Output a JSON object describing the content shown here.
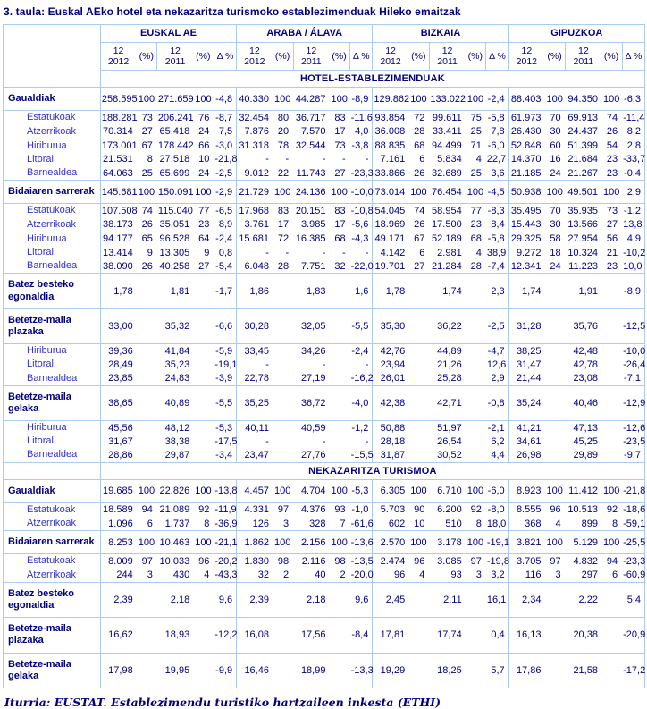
{
  "title": "3. taula: Euskal AEko hotel eta nekazaritza turismoko establezimenduak Hileko emaitzak",
  "footer": "Iturria: EUSTAT. Establezimendu turistiko hartzaileen inkesta (ETHI)",
  "colors": {
    "text_navy": "#000080",
    "sub_label_blue": "#3333CC",
    "border_light_blue": "#AACCEE"
  },
  "table": {
    "columns": {
      "groups": [
        "EUSKAL AE",
        "ARABA / ÁLAVA",
        "BIZKAIA",
        "GIPUZKOA"
      ],
      "sub": {
        "month": "12",
        "year1": "2012",
        "year2": "2011",
        "pct": "(%)",
        "delta": "Δ %"
      }
    },
    "sections": [
      {
        "title": "HOTEL-ESTABLEZIMENDUAK",
        "rows": [
          {
            "label": "Gaualdiak",
            "kind": "main",
            "top": false,
            "cells": [
              "258.595",
              "100",
              "271.659",
              "100",
              "-4,8",
              "40.330",
              "100",
              "44.287",
              "100",
              "-8,9",
              "129.862",
              "100",
              "133.022",
              "100",
              "-2,4",
              "88.403",
              "100",
              "94.350",
              "100",
              "-6,3"
            ]
          },
          {
            "label": "Estatukoak",
            "kind": "sub",
            "top": true,
            "cells": [
              "188.281",
              "73",
              "206.241",
              "76",
              "-8,7",
              "32.454",
              "80",
              "36.717",
              "83",
              "-11,6",
              "93.854",
              "72",
              "99.611",
              "75",
              "-5,8",
              "61.973",
              "70",
              "69.913",
              "74",
              "-11,4"
            ]
          },
          {
            "label": "Atzerrikoak",
            "kind": "sub",
            "top": false,
            "cells": [
              "70.314",
              "27",
              "65.418",
              "24",
              "7,5",
              "7.876",
              "20",
              "7.570",
              "17",
              "4,0",
              "36.008",
              "28",
              "33.411",
              "25",
              "7,8",
              "26.430",
              "30",
              "24.437",
              "26",
              "8,2"
            ]
          },
          {
            "label": "Hiriburua",
            "kind": "sub",
            "top": true,
            "cells": [
              "173.001",
              "67",
              "178.442",
              "66",
              "-3,0",
              "31.318",
              "78",
              "32.544",
              "73",
              "-3,8",
              "88.835",
              "68",
              "94.499",
              "71",
              "-6,0",
              "52.848",
              "60",
              "51.399",
              "54",
              "2,8"
            ]
          },
          {
            "label": "Litoral",
            "kind": "sub",
            "top": false,
            "cells": [
              "21.531",
              "8",
              "27.518",
              "10",
              "-21,8",
              "-",
              "-",
              "-",
              "-",
              "-",
              "7.161",
              "6",
              "5.834",
              "4",
              "22,7",
              "14.370",
              "16",
              "21.684",
              "23",
              "-33,7"
            ]
          },
          {
            "label": "Barnealdea",
            "kind": "sub",
            "top": false,
            "cells": [
              "64.063",
              "25",
              "65.699",
              "24",
              "-2,5",
              "9.012",
              "22",
              "11.743",
              "27",
              "-23,3",
              "33.866",
              "26",
              "32.689",
              "25",
              "3,6",
              "21.185",
              "24",
              "21.267",
              "23",
              "-0,4"
            ]
          },
          {
            "label": "Bidaiaren sarrerak",
            "kind": "main",
            "top": true,
            "cells": [
              "145.681",
              "100",
              "150.091",
              "100",
              "-2,9",
              "21.729",
              "100",
              "24.136",
              "100",
              "-10,0",
              "73.014",
              "100",
              "76.454",
              "100",
              "-4,5",
              "50.938",
              "100",
              "49.501",
              "100",
              "2,9"
            ]
          },
          {
            "label": "Estatukoak",
            "kind": "sub",
            "top": true,
            "cells": [
              "107.508",
              "74",
              "115.040",
              "77",
              "-6,5",
              "17.968",
              "83",
              "20.151",
              "83",
              "-10,8",
              "54.045",
              "74",
              "58.954",
              "77",
              "-8,3",
              "35.495",
              "70",
              "35.935",
              "73",
              "-1,2"
            ]
          },
          {
            "label": "Atzerrikoak",
            "kind": "sub",
            "top": false,
            "cells": [
              "38.173",
              "26",
              "35.051",
              "23",
              "8,9",
              "3.761",
              "17",
              "3.985",
              "17",
              "-5,6",
              "18.969",
              "26",
              "17.500",
              "23",
              "8,4",
              "15.443",
              "30",
              "13.566",
              "27",
              "13,8"
            ]
          },
          {
            "label": "Hiriburua",
            "kind": "sub",
            "top": true,
            "cells": [
              "94.177",
              "65",
              "96.528",
              "64",
              "-2,4",
              "15.681",
              "72",
              "16.385",
              "68",
              "-4,3",
              "49.171",
              "67",
              "52.189",
              "68",
              "-5,8",
              "29.325",
              "58",
              "27.954",
              "56",
              "4,9"
            ]
          },
          {
            "label": "Litoral",
            "kind": "sub",
            "top": false,
            "cells": [
              "13.414",
              "9",
              "13.305",
              "9",
              "0,8",
              "-",
              "-",
              "-",
              "-",
              "-",
              "4.142",
              "6",
              "2.981",
              "4",
              "38,9",
              "9.272",
              "18",
              "10.324",
              "21",
              "-10,2"
            ]
          },
          {
            "label": "Barnealdea",
            "kind": "sub",
            "top": false,
            "cells": [
              "38.090",
              "26",
              "40.258",
              "27",
              "-5,4",
              "6.048",
              "28",
              "7.751",
              "32",
              "-22,0",
              "19.701",
              "27",
              "21.284",
              "28",
              "-7,4",
              "12.341",
              "24",
              "11.223",
              "23",
              "10,0"
            ]
          },
          {
            "label": "Batez besteko egonaldia",
            "kind": "main",
            "top": true,
            "cells": [
              "1,78",
              "",
              "1,81",
              "",
              "-1,7",
              "1,86",
              "",
              "1,83",
              "",
              "1,6",
              "1,78",
              "",
              "1,74",
              "",
              "2,3",
              "1,74",
              "",
              "1,91",
              "",
              "-8,9"
            ]
          },
          {
            "label": "Betetze-maila plazaka",
            "kind": "main",
            "top": true,
            "cells": [
              "33,00",
              "",
              "35,32",
              "",
              "-6,6",
              "30,28",
              "",
              "32,05",
              "",
              "-5,5",
              "35,30",
              "",
              "36,22",
              "",
              "-2,5",
              "31,28",
              "",
              "35,76",
              "",
              "-12,5"
            ]
          },
          {
            "label": "Hiriburua",
            "kind": "sub",
            "top": true,
            "cells": [
              "39,36",
              "",
              "41,84",
              "",
              "-5,9",
              "33,45",
              "",
              "34,26",
              "",
              "-2,4",
              "42,76",
              "",
              "44,89",
              "",
              "-4,7",
              "38,25",
              "",
              "42,48",
              "",
              "-10,0"
            ]
          },
          {
            "label": "Litoral",
            "kind": "sub",
            "top": false,
            "cells": [
              "28,49",
              "",
              "35,23",
              "",
              "-19,1",
              "-",
              "",
              "-",
              "",
              "-",
              "23,94",
              "",
              "21,26",
              "",
              "12,6",
              "31,47",
              "",
              "42,78",
              "",
              "-26,4"
            ]
          },
          {
            "label": "Barnealdea",
            "kind": "sub",
            "top": false,
            "cells": [
              "23,85",
              "",
              "24,83",
              "",
              "-3,9",
              "22,78",
              "",
              "27,19",
              "",
              "-16,2",
              "26,01",
              "",
              "25,28",
              "",
              "2,9",
              "21,44",
              "",
              "23,08",
              "",
              "-7,1"
            ]
          },
          {
            "label": "Betetze-maila gelaka",
            "kind": "main",
            "top": true,
            "cells": [
              "38,65",
              "",
              "40,89",
              "",
              "-5,5",
              "35,25",
              "",
              "36,72",
              "",
              "-4,0",
              "42,38",
              "",
              "42,71",
              "",
              "-0,8",
              "35,24",
              "",
              "40,46",
              "",
              "-12,9"
            ]
          },
          {
            "label": "Hiriburua",
            "kind": "sub",
            "top": true,
            "cells": [
              "45,56",
              "",
              "48,12",
              "",
              "-5,3",
              "40,11",
              "",
              "40,59",
              "",
              "-1,2",
              "50,88",
              "",
              "51,97",
              "",
              "-2,1",
              "41,21",
              "",
              "47,13",
              "",
              "-12,6"
            ]
          },
          {
            "label": "Litoral",
            "kind": "sub",
            "top": false,
            "cells": [
              "31,67",
              "",
              "38,38",
              "",
              "-17,5",
              "-",
              "",
              "-",
              "",
              "-",
              "28,18",
              "",
              "26,54",
              "",
              "6,2",
              "34,61",
              "",
              "45,25",
              "",
              "-23,5"
            ]
          },
          {
            "label": "Barnealdea",
            "kind": "sub",
            "top": false,
            "cells": [
              "28,86",
              "",
              "29,87",
              "",
              "-3,4",
              "23,47",
              "",
              "27,76",
              "",
              "-15,5",
              "31,87",
              "",
              "30,52",
              "",
              "4,4",
              "26,98",
              "",
              "29,89",
              "",
              "-9,7"
            ]
          }
        ]
      },
      {
        "title": "NEKAZARITZA TURISMOA",
        "rows": [
          {
            "label": "Gaualdiak",
            "kind": "main",
            "top": false,
            "cells": [
              "19.685",
              "100",
              "22.826",
              "100",
              "-13,8",
              "4.457",
              "100",
              "4.704",
              "100",
              "-5,3",
              "6.305",
              "100",
              "6.710",
              "100",
              "-6,0",
              "8.923",
              "100",
              "11.412",
              "100",
              "-21,8"
            ]
          },
          {
            "label": "Estatukoak",
            "kind": "sub",
            "top": true,
            "cells": [
              "18.589",
              "94",
              "21.089",
              "92",
              "-11,9",
              "4.331",
              "97",
              "4.376",
              "93",
              "-1,0",
              "5.703",
              "90",
              "6.200",
              "92",
              "-8,0",
              "8.555",
              "96",
              "10.513",
              "92",
              "-18,6"
            ]
          },
          {
            "label": "Atzerrikoak",
            "kind": "sub",
            "top": false,
            "cells": [
              "1.096",
              "6",
              "1.737",
              "8",
              "-36,9",
              "126",
              "3",
              "328",
              "7",
              "-61,6",
              "602",
              "10",
              "510",
              "8",
              "18,0",
              "368",
              "4",
              "899",
              "8",
              "-59,1"
            ]
          },
          {
            "label": "Bidaiaren sarrerak",
            "kind": "main",
            "top": true,
            "cells": [
              "8.253",
              "100",
              "10.463",
              "100",
              "-21,1",
              "1.862",
              "100",
              "2.156",
              "100",
              "-13,6",
              "2.570",
              "100",
              "3.178",
              "100",
              "-19,1",
              "3.821",
              "100",
              "5.129",
              "100",
              "-25,5"
            ]
          },
          {
            "label": "Estatukoak",
            "kind": "sub",
            "top": true,
            "cells": [
              "8.009",
              "97",
              "10.033",
              "96",
              "-20,2",
              "1.830",
              "98",
              "2.116",
              "98",
              "-13,5",
              "2.474",
              "96",
              "3.085",
              "97",
              "-19,8",
              "3.705",
              "97",
              "4.832",
              "94",
              "-23,3"
            ]
          },
          {
            "label": "Atzerrikoak",
            "kind": "sub",
            "top": false,
            "cells": [
              "244",
              "3",
              "430",
              "4",
              "-43,3",
              "32",
              "2",
              "40",
              "2",
              "-20,0",
              "96",
              "4",
              "93",
              "3",
              "3,2",
              "116",
              "3",
              "297",
              "6",
              "-60,9"
            ]
          },
          {
            "label": "Batez besteko egonaldia",
            "kind": "main",
            "top": true,
            "cells": [
              "2,39",
              "",
              "2,18",
              "",
              "9,6",
              "2,39",
              "",
              "2,18",
              "",
              "9,6",
              "2,45",
              "",
              "2,11",
              "",
              "16,1",
              "2,34",
              "",
              "2,22",
              "",
              "5,4"
            ]
          },
          {
            "label": "Betetze-maila plazaka",
            "kind": "main",
            "top": true,
            "cells": [
              "16,62",
              "",
              "18,93",
              "",
              "-12,2",
              "16,08",
              "",
              "17,56",
              "",
              "-8,4",
              "17,81",
              "",
              "17,74",
              "",
              "0,4",
              "16,13",
              "",
              "20,38",
              "",
              "-20,9"
            ]
          },
          {
            "label": "Betetze-maila gelaka",
            "kind": "main",
            "top": true,
            "cells": [
              "17,98",
              "",
              "19,95",
              "",
              "-9,9",
              "16,46",
              "",
              "18,99",
              "",
              "-13,3",
              "19,29",
              "",
              "18,25",
              "",
              "5,7",
              "17,86",
              "",
              "21,58",
              "",
              "-17,2"
            ]
          }
        ]
      }
    ]
  }
}
